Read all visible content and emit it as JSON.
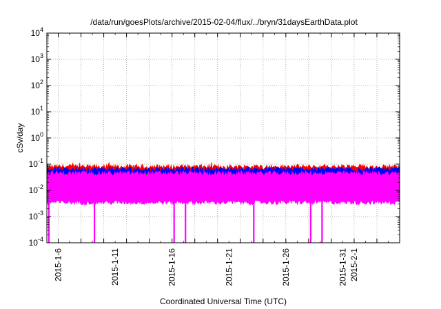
{
  "chart_data": {
    "type": "line",
    "title": "/data/run/goesPlots/archive/2015-02-04/flux/../bryn/31daysEarthData.plot",
    "xlabel": "Coordinated Universal Time (UTC)",
    "ylabel": "cSv/day",
    "y_scale": "log",
    "ylim": [
      0.0001,
      10000
    ],
    "xlim": [
      "2015-01-05",
      "2015-02-05"
    ],
    "y_ticks": [
      {
        "base": "10",
        "exp": "-4"
      },
      {
        "base": "10",
        "exp": "-3"
      },
      {
        "base": "10",
        "exp": "-2"
      },
      {
        "base": "10",
        "exp": "-1"
      },
      {
        "base": "10",
        "exp": "0"
      },
      {
        "base": "10",
        "exp": "1"
      },
      {
        "base": "10",
        "exp": "2"
      },
      {
        "base": "10",
        "exp": "3"
      },
      {
        "base": "10",
        "exp": "4"
      }
    ],
    "x_ticks": [
      {
        "label": "2015-1-6",
        "date": "2015-01-06"
      },
      {
        "label": "2015-1-11",
        "date": "2015-01-11"
      },
      {
        "label": "2015-1-16",
        "date": "2015-01-16"
      },
      {
        "label": "2015-1-21",
        "date": "2015-01-21"
      },
      {
        "label": "2015-1-26",
        "date": "2015-01-26"
      },
      {
        "label": "2015-1-31",
        "date": "2015-01-31"
      },
      {
        "label": "2015-2-1",
        "date": "2015-02-01"
      }
    ],
    "grid": true,
    "series": [
      {
        "color": "#ff0000",
        "typical_range": [
          0.04,
          0.08
        ],
        "peak_max": 0.12
      },
      {
        "color": "#0000ff",
        "typical_range": [
          0.035,
          0.065
        ]
      },
      {
        "color": "#00a000",
        "typical_range": [
          0.02,
          0.035
        ]
      },
      {
        "color": "#ff00ff",
        "typical_range": [
          0.004,
          0.045
        ],
        "dropouts": [
          "2015-01-05",
          "2015-01-09",
          "2015-01-16",
          "2015-01-17",
          "2015-01-23",
          "2015-01-28",
          "2015-01-29"
        ]
      }
    ]
  }
}
